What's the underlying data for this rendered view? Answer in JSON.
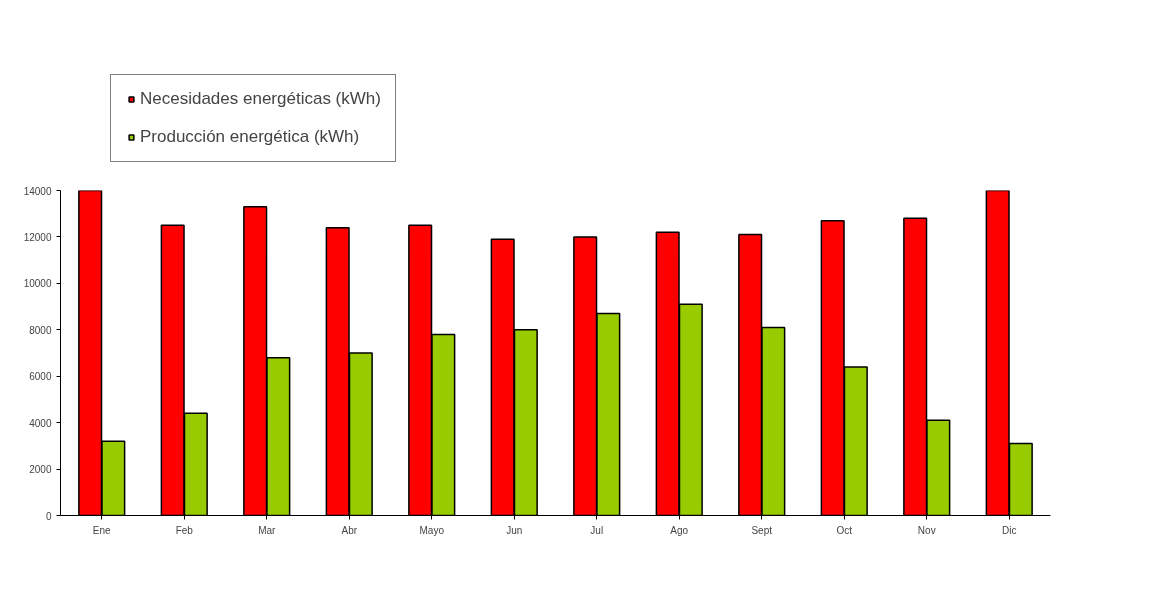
{
  "chart_data": {
    "type": "bar",
    "categories": [
      "Ene",
      "Feb",
      "Mar",
      "Abr",
      "Mayo",
      "Jun",
      "Jul",
      "Ago",
      "Sept",
      "Oct",
      "Nov",
      "Dic"
    ],
    "series": [
      {
        "name": "Necesidades energéticas (kWh)",
        "color": "#ff0000",
        "values": [
          14000,
          12500,
          13300,
          12400,
          12500,
          11900,
          12000,
          12200,
          12100,
          12700,
          12800,
          14000
        ]
      },
      {
        "name": "Producción energética (kWh)",
        "color": "#99cc00",
        "values": [
          3200,
          4400,
          6800,
          7000,
          7800,
          8000,
          8700,
          9100,
          8100,
          6400,
          4100,
          3100
        ]
      }
    ],
    "ylim": [
      0,
      14000
    ],
    "yticks": [
      0,
      2000,
      4000,
      6000,
      8000,
      10000,
      12000,
      14000
    ],
    "grid": false,
    "legend": "top left"
  }
}
